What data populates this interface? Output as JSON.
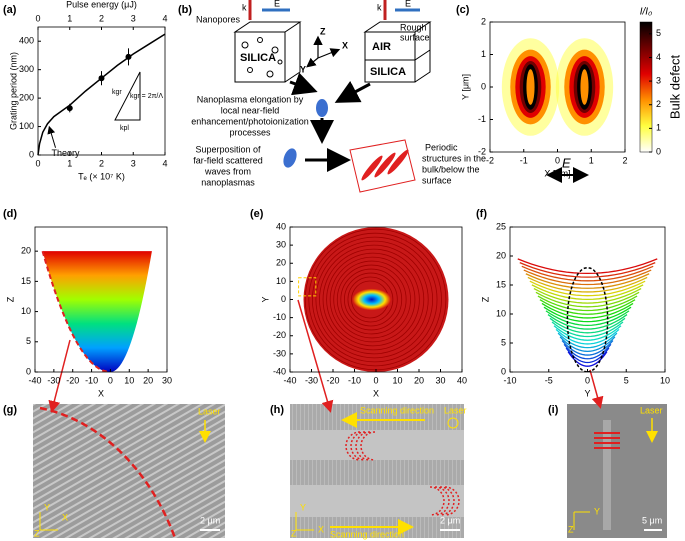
{
  "chart_data": [
    {
      "type": "scatter",
      "label": "(a)",
      "x_label": "Tₑ (× 10⁷ K)",
      "x2_label": "Pulse energy (μJ)",
      "y_label": "Grating period (nm)",
      "xlim": [
        0,
        4
      ],
      "xticks": [
        0,
        1,
        2,
        3,
        4
      ],
      "x2lim": [
        0,
        4
      ],
      "x2ticks": [
        0,
        1,
        2,
        3,
        4
      ],
      "ylim": [
        0,
        450
      ],
      "yticks": [
        0,
        100,
        200,
        300,
        400
      ],
      "series": [
        {
          "x": [
            1.0,
            2.0,
            2.85
          ],
          "values": [
            165,
            270,
            345
          ],
          "errors": [
            15,
            25,
            30
          ],
          "color": "#000000"
        },
        {
          "name": "Theory",
          "x": [
            0,
            0.05,
            0.15,
            0.3,
            0.5,
            0.75,
            1,
            1.5,
            2,
            2.5,
            3,
            3.5,
            4
          ],
          "values": [
            0,
            40,
            80,
            110,
            135,
            155,
            175,
            225,
            270,
            315,
            355,
            390,
            425
          ],
          "color": "#000000"
        }
      ],
      "annotations": [
        "kgr",
        "kpl",
        "kgr = 2π/Λ"
      ]
    },
    {
      "type": "heatmap",
      "label": "(c)",
      "x_label": "X [μm]",
      "y_label": "Y [μm]",
      "xlim": [
        -2,
        2
      ],
      "xticks": [
        -2,
        -1,
        0,
        1,
        2
      ],
      "ylim": [
        -2,
        2
      ],
      "yticks": [
        -2,
        -1,
        0,
        1,
        2
      ],
      "annotations": [
        "E"
      ],
      "colorbar": {
        "title": "I/I₀",
        "label": "Bulk defect",
        "lim": [
          0,
          5.5
        ],
        "ticks": [
          0,
          1,
          2,
          3,
          4,
          5
        ],
        "colors": [
          "#ffffff",
          "#ffff40",
          "#ff9000",
          "#e00000",
          "#700000",
          "#000000"
        ]
      }
    },
    {
      "type": "surface",
      "label": "(d)",
      "x_label": "X",
      "y_label": "Z",
      "xlim": [
        -40,
        30
      ],
      "xticks": [
        -40,
        -30,
        -20,
        -10,
        0,
        10,
        20,
        30
      ],
      "ylim": [
        0,
        24
      ],
      "yticks": [
        0,
        5,
        10,
        15,
        20
      ]
    },
    {
      "type": "image",
      "label": "(e)",
      "x_label": "X",
      "y_label": "Y",
      "xlim": [
        -40,
        40
      ],
      "xticks": [
        -40,
        -30,
        -20,
        -10,
        0,
        10,
        20,
        30,
        40
      ],
      "ylim": [
        -40,
        40
      ],
      "yticks": [
        -40,
        -30,
        -20,
        -10,
        0,
        10,
        20,
        30,
        40
      ]
    },
    {
      "type": "line",
      "label": "(f)",
      "x_label": "Y",
      "y_label": "Z",
      "xlim": [
        -10,
        10
      ],
      "xticks": [
        -10,
        -5,
        0,
        5,
        10
      ],
      "ylim": [
        0,
        25
      ],
      "yticks": [
        0,
        5,
        10,
        15,
        20,
        25
      ]
    }
  ],
  "diagram": {
    "label": "(b)",
    "texts": [
      "Nanopores",
      "SILICA",
      "Z",
      "X",
      "Y",
      "Rough",
      "surface",
      "AIR",
      "SILICA",
      "Nanoplasma elongation by",
      "local near-field",
      "enhancement/photoionization",
      "processes",
      "Superposition of",
      "far-field scattered",
      "waves from",
      "nanoplasmas",
      "Periodic",
      "structures in the",
      "bulk/below the",
      "surface",
      "k",
      "E",
      "k",
      "E"
    ]
  },
  "micrographs": [
    {
      "label": "(g)",
      "texts": [
        "Laser",
        "X",
        "Y",
        "Z",
        "2 μm"
      ]
    },
    {
      "label": "(h)",
      "texts": [
        "Scanning direction",
        "Laser",
        "Y",
        "X",
        "Z",
        "2 μm",
        "Scanning direction"
      ]
    },
    {
      "label": "(i)",
      "texts": [
        "Laser",
        "Y",
        "Z",
        "5 μm"
      ]
    }
  ]
}
